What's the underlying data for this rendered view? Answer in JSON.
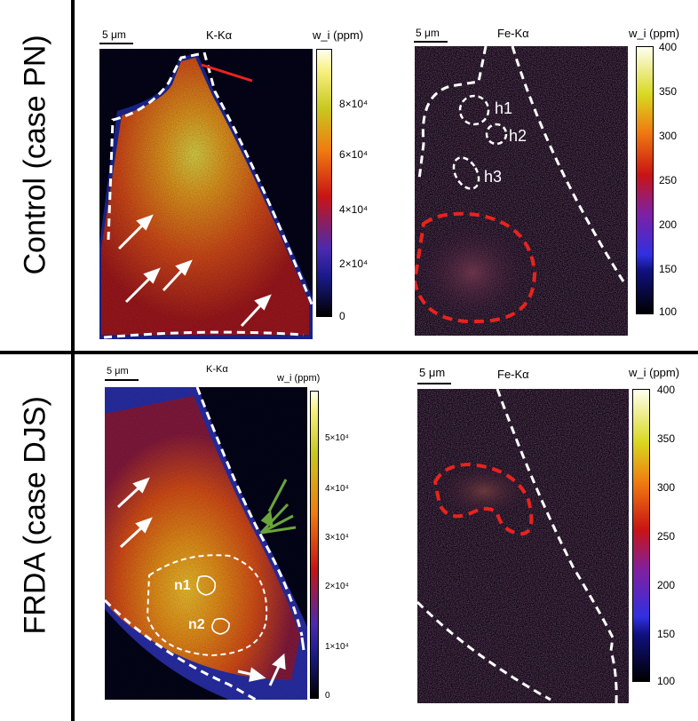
{
  "rows": [
    {
      "label": "Control (case PN)"
    },
    {
      "label": "FRDA (case DJS)"
    }
  ],
  "panels": {
    "control_k": {
      "title": "K-Kα",
      "scale": "5 μm",
      "unit": "w_i (ppm)",
      "ticks": [
        "8×10⁴",
        "6×10⁴",
        "4×10⁴",
        "2×10⁴",
        "0"
      ]
    },
    "control_fe": {
      "title": "Fe-Kα",
      "scale": "5 μm",
      "unit": "w_i (ppm)",
      "ticks": [
        "400",
        "350",
        "300",
        "250",
        "200",
        "150",
        "100"
      ],
      "regions": [
        "h1",
        "h2",
        "h3"
      ]
    },
    "frda_k": {
      "title": "K-Kα",
      "scale": "5 μm",
      "unit": "w_i (ppm)",
      "ticks": [
        "5×10⁴",
        "4×10⁴",
        "3×10⁴",
        "2×10⁴",
        "1×10⁴",
        "0"
      ],
      "regions": [
        "n1",
        "n2"
      ]
    },
    "frda_fe": {
      "title": "Fe-Kα",
      "scale": "5 μm",
      "unit": "w_i (ppm)",
      "ticks": [
        "400",
        "350",
        "300",
        "250",
        "200",
        "150",
        "100"
      ]
    }
  },
  "colors": {
    "arrow_white": "#ffffff",
    "arrow_red": "#e8231e",
    "arrow_green": "#6aa53a",
    "outline_red": "#e8231e",
    "outline_white": "#ffffff"
  }
}
